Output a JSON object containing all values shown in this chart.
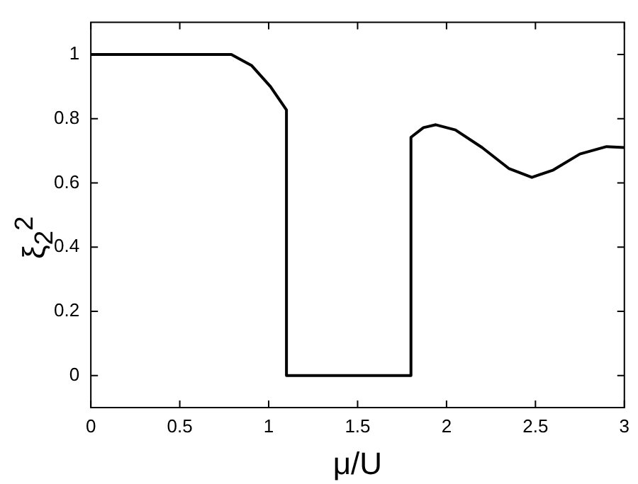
{
  "chart_data": {
    "type": "line",
    "xlabel": "μ/U",
    "ylabel": "ξ$_{2}$$^{2}$",
    "series": [
      {
        "color": "#000000",
        "x": [
          0,
          0.5,
          0.79,
          0.905,
          1.01,
          1.1,
          1.1,
          1.5,
          1.8,
          1.8,
          1.87,
          1.94,
          2.05,
          2.2,
          2.35,
          2.48,
          2.6,
          2.75,
          2.9,
          3
        ],
        "values": [
          1,
          1,
          1,
          0.965,
          0.9,
          0.827,
          0,
          0,
          0,
          0.742,
          0.772,
          0.781,
          0.765,
          0.71,
          0.645,
          0.617,
          0.64,
          0.69,
          0.713,
          0.71
        ]
      }
    ],
    "xlim": [
      0,
      3
    ],
    "xticks": [
      0,
      0.5,
      1,
      1.5,
      2,
      2.5,
      3
    ],
    "ylim": [
      -0.1,
      1.1
    ],
    "yticks": [
      0,
      0.2,
      0.4,
      0.6,
      0.8,
      1
    ],
    "grid": false,
    "legend": false,
    "marker": "none",
    "line_style": "solid"
  }
}
